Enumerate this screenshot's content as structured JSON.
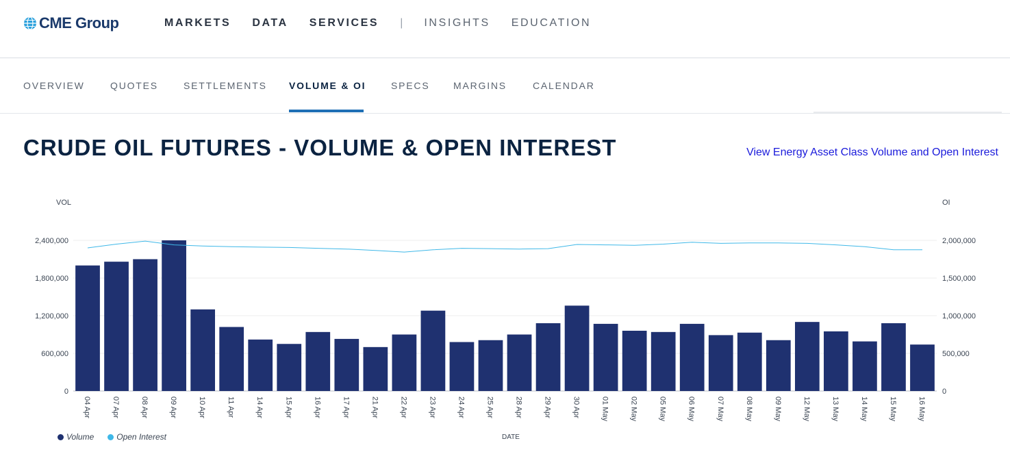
{
  "brand": {
    "name": "CME Group"
  },
  "main_nav": {
    "items": [
      {
        "label": "MARKETS"
      },
      {
        "label": "DATA"
      },
      {
        "label": "SERVICES"
      },
      {
        "label": "INSIGHTS"
      },
      {
        "label": "EDUCATION"
      }
    ],
    "separator": "|"
  },
  "sub_nav": {
    "tabs": [
      {
        "label": "OVERVIEW"
      },
      {
        "label": "QUOTES"
      },
      {
        "label": "SETTLEMENTS"
      },
      {
        "label": "VOLUME & OI"
      },
      {
        "label": "SPECS"
      },
      {
        "label": "MARGINS"
      },
      {
        "label": "CALENDAR"
      }
    ],
    "active_tab": "VOLUME & OI"
  },
  "page": {
    "title": "CRUDE OIL FUTURES - VOLUME & OPEN INTEREST",
    "link_text": "View Energy Asset Class Volume and Open Interest"
  },
  "colors": {
    "volume_bar": "#1f3170",
    "open_interest_line": "#3fb8e8",
    "link": "#1a1adb",
    "active_tab_underline": "#1f6fb5"
  },
  "chart_data": {
    "type": "bar",
    "ylabel_left": "VOL",
    "ylabel_right": "OI",
    "xlabel": "DATE",
    "categories": [
      "04 Apr",
      "07 Apr",
      "08 Apr",
      "09 Apr",
      "10 Apr",
      "11 Apr",
      "14 Apr",
      "15 Apr",
      "16 Apr",
      "17 Apr",
      "21 Apr",
      "22 Apr",
      "23 Apr",
      "24 Apr",
      "25 Apr",
      "28 Apr",
      "29 Apr",
      "30 Apr",
      "01 May",
      "02 May",
      "05 May",
      "06 May",
      "07 May",
      "08 May",
      "09 May",
      "12 May",
      "13 May",
      "14 May",
      "15 May",
      "16 May"
    ],
    "series": [
      {
        "name": "Volume",
        "axis": "left",
        "type": "bar",
        "values": [
          2000000,
          2060000,
          2100000,
          2400000,
          1300000,
          1020000,
          820000,
          750000,
          940000,
          830000,
          700000,
          900000,
          1280000,
          780000,
          810000,
          900000,
          1080000,
          1360000,
          1070000,
          960000,
          940000,
          1070000,
          890000,
          930000,
          810000,
          1100000,
          950000,
          790000,
          1080000,
          740000
        ]
      },
      {
        "name": "Open Interest",
        "axis": "right",
        "type": "line",
        "values": [
          1900000,
          1950000,
          1990000,
          1940000,
          1925000,
          1915000,
          1910000,
          1905000,
          1895000,
          1885000,
          1865000,
          1845000,
          1875000,
          1895000,
          1890000,
          1885000,
          1890000,
          1945000,
          1940000,
          1935000,
          1950000,
          1975000,
          1960000,
          1965000,
          1965000,
          1960000,
          1940000,
          1915000,
          1875000,
          1875000
        ]
      }
    ],
    "ylim_left": [
      0,
      2400000
    ],
    "ylim_right": [
      0,
      2000000
    ],
    "yticks_left": [
      "0",
      "600,000",
      "1,200,000",
      "1,800,000",
      "2,400,000"
    ],
    "yticks_right": [
      "0",
      "500,000",
      "1,000,000",
      "1,500,000",
      "2,000,000"
    ],
    "grid": true,
    "legend_position": "bottom-left"
  }
}
